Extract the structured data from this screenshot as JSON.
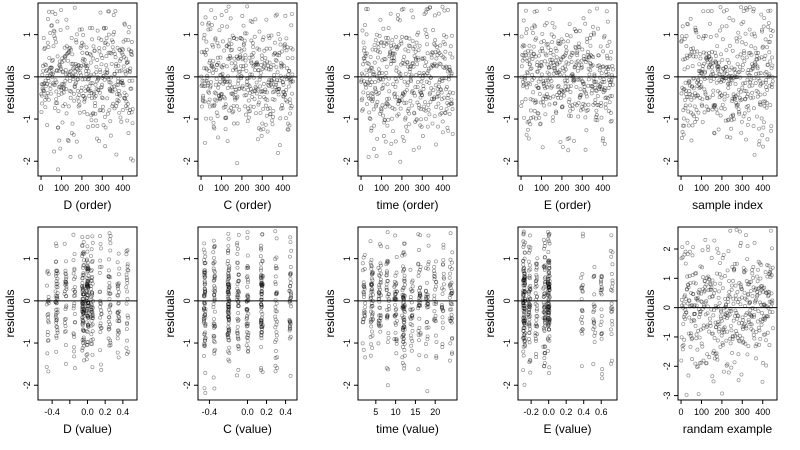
{
  "figure": {
    "background": "#ffffff",
    "point_color": "#000000",
    "point_alpha": 0.42,
    "reference_line": "horizontal line at residuals = 0"
  },
  "chart_data": [
    {
      "type": "scatter",
      "title": "",
      "xlabel": "D (order)",
      "ylabel": "residuals",
      "xlim": [
        -15,
        470
      ],
      "ylim": [
        -2.35,
        1.75
      ],
      "grid": false,
      "xticks": [
        0,
        100,
        200,
        300,
        400
      ],
      "xtick_labels": [
        "0",
        "100",
        "200",
        "300",
        "400"
      ],
      "yticks": [
        -2,
        -1,
        0,
        1
      ],
      "ytick_labels": [
        "-2",
        "-1",
        "0",
        "1"
      ],
      "n": 450,
      "x_kind": "order",
      "y_mean": 0.0,
      "y_sd": 0.7,
      "series": []
    },
    {
      "type": "scatter",
      "title": "",
      "xlabel": "C (order)",
      "ylabel": "residuals",
      "xlim": [
        -15,
        470
      ],
      "ylim": [
        -2.35,
        1.75
      ],
      "grid": false,
      "xticks": [
        0,
        100,
        200,
        300,
        400
      ],
      "xtick_labels": [
        "0",
        "100",
        "200",
        "300",
        "400"
      ],
      "yticks": [
        -2,
        -1,
        0,
        1
      ],
      "ytick_labels": [
        "-2",
        "-1",
        "0",
        "1"
      ],
      "n": 450,
      "x_kind": "order",
      "y_mean": 0.0,
      "y_sd": 0.7,
      "series": []
    },
    {
      "type": "scatter",
      "title": "",
      "xlabel": "time (order)",
      "ylabel": "residuals",
      "xlim": [
        -15,
        470
      ],
      "ylim": [
        -2.35,
        1.75
      ],
      "grid": false,
      "xticks": [
        0,
        100,
        200,
        300,
        400
      ],
      "xtick_labels": [
        "0",
        "100",
        "200",
        "300",
        "400"
      ],
      "yticks": [
        -2,
        -1,
        0,
        1
      ],
      "ytick_labels": [
        "-2",
        "-1",
        "0",
        "1"
      ],
      "n": 450,
      "x_kind": "order",
      "y_mean": 0.0,
      "y_sd": 0.7,
      "series": []
    },
    {
      "type": "scatter",
      "title": "",
      "xlabel": "E (order)",
      "ylabel": "residuals",
      "xlim": [
        -15,
        470
      ],
      "ylim": [
        -2.35,
        1.75
      ],
      "grid": false,
      "xticks": [
        0,
        100,
        200,
        300,
        400
      ],
      "xtick_labels": [
        "0",
        "100",
        "200",
        "300",
        "400"
      ],
      "yticks": [
        -2,
        -1,
        0,
        1
      ],
      "ytick_labels": [
        "-2",
        "-1",
        "0",
        "1"
      ],
      "n": 450,
      "x_kind": "order",
      "y_mean": 0.0,
      "y_sd": 0.7,
      "series": []
    },
    {
      "type": "scatter",
      "title": "",
      "xlabel": "sample index",
      "ylabel": "residuals",
      "xlim": [
        -15,
        470
      ],
      "ylim": [
        -2.35,
        1.75
      ],
      "grid": false,
      "xticks": [
        0,
        100,
        200,
        300,
        400
      ],
      "xtick_labels": [
        "0",
        "100",
        "200",
        "300",
        "400"
      ],
      "yticks": [
        -2,
        -1,
        0,
        1
      ],
      "ytick_labels": [
        "-2",
        "-1",
        "0",
        "1"
      ],
      "n": 450,
      "x_kind": "order",
      "y_mean": 0.0,
      "y_sd": 0.7,
      "series": []
    },
    {
      "type": "scatter",
      "title": "",
      "xlabel": "D (value)",
      "ylabel": "residuals",
      "xlim": [
        -0.56,
        0.56
      ],
      "ylim": [
        -2.35,
        1.75
      ],
      "grid": false,
      "xticks": [
        -0.4,
        -0.2,
        0.0,
        0.2,
        0.4
      ],
      "xtick_labels": [
        "-0.4",
        "",
        "0.0",
        "0.2",
        "0.4"
      ],
      "yticks": [
        -2,
        -1,
        0,
        1
      ],
      "ytick_labels": [
        "-2",
        "-1",
        "0",
        "1"
      ],
      "n": 450,
      "x_kind": "value",
      "x_values": [
        -0.45,
        -0.35,
        -0.25,
        -0.15,
        -0.05,
        0.0,
        0.05,
        0.15,
        0.25,
        0.35,
        0.45
      ],
      "x_weights": [
        1,
        1,
        1,
        1,
        2,
        3,
        2,
        1,
        1,
        1,
        1
      ],
      "x_jitter": 0.012,
      "y_mean": 0.0,
      "y_sd": 0.7,
      "series": []
    },
    {
      "type": "scatter",
      "title": "",
      "xlabel": "C (value)",
      "ylabel": "residuals",
      "xlim": [
        -0.52,
        0.52
      ],
      "ylim": [
        -2.35,
        1.75
      ],
      "grid": false,
      "xticks": [
        -0.4,
        0.0,
        0.2,
        0.4
      ],
      "xtick_labels": [
        "-0.4",
        "0.0",
        "0.2",
        "0.4"
      ],
      "yticks": [
        -2,
        -1,
        0,
        1
      ],
      "ytick_labels": [
        "-2",
        "-1",
        "0",
        "1"
      ],
      "n": 450,
      "x_kind": "value",
      "x_values": [
        -0.45,
        -0.35,
        -0.2,
        -0.1,
        0.0,
        0.15,
        0.3,
        0.45
      ],
      "x_weights": [
        2,
        1,
        2,
        1,
        1,
        2,
        1,
        1
      ],
      "x_jitter": 0.01,
      "y_mean": 0.0,
      "y_sd": 0.7,
      "series": []
    },
    {
      "type": "scatter",
      "title": "",
      "xlabel": "time (value)",
      "ylabel": "residuals",
      "xlim": [
        0.5,
        25.5
      ],
      "ylim": [
        -2.35,
        1.75
      ],
      "grid": false,
      "xticks": [
        5,
        10,
        15,
        20
      ],
      "xtick_labels": [
        "5",
        "10",
        "15",
        "20"
      ],
      "yticks": [
        -2,
        -1,
        0,
        1
      ],
      "ytick_labels": [
        "-2",
        "-1",
        "0",
        "1"
      ],
      "n": 450,
      "x_kind": "value",
      "x_values": [
        2,
        4,
        6,
        8,
        10,
        12,
        14,
        16,
        18,
        20,
        22,
        24
      ],
      "x_weights": [
        1,
        1,
        1,
        1,
        1,
        2,
        1,
        1,
        1,
        1,
        1,
        1
      ],
      "x_jitter": 0.35,
      "y_mean": 0.0,
      "y_sd": 0.7,
      "series": []
    },
    {
      "type": "scatter",
      "title": "",
      "xlabel": "E (value)",
      "ylabel": "residuals",
      "xlim": [
        -0.35,
        0.78
      ],
      "ylim": [
        -2.35,
        1.75
      ],
      "grid": false,
      "xticks": [
        -0.2,
        0.0,
        0.2,
        0.4,
        0.6
      ],
      "xtick_labels": [
        "-0.2",
        "0.0",
        "0.2",
        "0.4",
        "0.6"
      ],
      "yticks": [
        -2,
        -1,
        0,
        1
      ],
      "ytick_labels": [
        "-2",
        "-1",
        "0",
        "1"
      ],
      "n": 450,
      "x_kind": "value",
      "x_values": [
        -0.28,
        -0.22,
        -0.14,
        -0.05,
        0.0,
        0.38,
        0.52,
        0.6,
        0.72
      ],
      "x_weights": [
        5,
        3,
        2,
        3,
        4,
        1,
        1,
        1,
        1
      ],
      "x_jitter": 0.012,
      "y_mean": 0.0,
      "y_sd": 0.7,
      "series": []
    },
    {
      "type": "scatter",
      "title": "",
      "xlabel": "randam example",
      "ylabel": "residuals",
      "xlim": [
        -15,
        470
      ],
      "ylim": [
        -3.15,
        2.75
      ],
      "grid": false,
      "xticks": [
        0,
        100,
        200,
        300,
        400
      ],
      "xtick_labels": [
        "0",
        "100",
        "200",
        "300",
        "400"
      ],
      "yticks": [
        -3,
        -2,
        -1,
        0,
        1,
        2
      ],
      "ytick_labels": [
        "-3",
        "-2",
        "-1",
        "0",
        "1",
        "2"
      ],
      "n": 450,
      "x_kind": "order",
      "y_mean": 0.0,
      "y_sd": 1.0,
      "series": []
    }
  ]
}
